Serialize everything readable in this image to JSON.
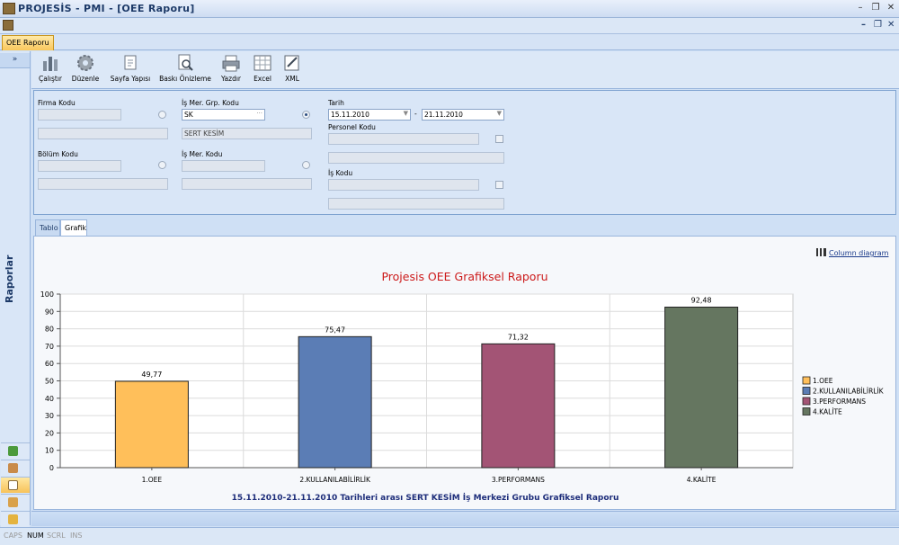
{
  "window": {
    "title": "PROJESİS - PMI - [OEE Raporu]"
  },
  "doc_tab": {
    "label": "OEE Raporu"
  },
  "left_panel": {
    "collapse": "»",
    "label": "Raporlar"
  },
  "toolbar": {
    "run": "Çalıştır",
    "edit": "Düzenle",
    "page_setup": "Sayfa Yapısı",
    "print_preview": "Baskı Önizleme",
    "print": "Yazdır",
    "excel": "Excel",
    "xml": "XML"
  },
  "filters": {
    "firma_kodu": {
      "label": "Firma Kodu",
      "value": "",
      "desc": ""
    },
    "bolum_kodu": {
      "label": "Bölüm Kodu",
      "value": "",
      "desc": ""
    },
    "is_mer_grp_kodu": {
      "label": "İş Mer. Grp. Kodu",
      "value": "SK",
      "desc": "SERT KESİM"
    },
    "is_mer_kodu": {
      "label": "İş Mer. Kodu",
      "value": "",
      "desc": ""
    },
    "tarih": {
      "label": "Tarih",
      "from": "15.11.2010",
      "to": "21.11.2010",
      "sep": "-"
    },
    "personel_kodu": {
      "label": "Personel Kodu",
      "value": "",
      "desc": ""
    },
    "is_kodu": {
      "label": "İş Kodu",
      "value": "",
      "desc": ""
    }
  },
  "tabs": [
    {
      "label": "Tablo"
    },
    {
      "label": "Grafik"
    }
  ],
  "column_diagram_link": "Column diagram",
  "status": {
    "caps": "CAPS",
    "num": "NUM",
    "scrl": "SCRL",
    "ins": "INS"
  },
  "chart_data": {
    "type": "bar",
    "title": "Projesis OEE Grafiksel Raporu",
    "subtitle": "15.11.2010-21.11.2010 Tarihleri arası SERT KESİM İş Merkezi Grubu  Grafiksel Raporu",
    "categories": [
      "1.OEE",
      "2.KULLANILABİLİRLİK",
      "3.PERFORMANS",
      "4.KALİTE"
    ],
    "values": [
      49.77,
      75.47,
      71.32,
      92.48
    ],
    "value_labels": [
      "49,77",
      "75,47",
      "71,32",
      "92,48"
    ],
    "legend": [
      "1.OEE",
      "2.KULLANILABİLİRLİK",
      "3.PERFORMANS",
      "4.KALİTE"
    ],
    "colors": [
      "#ffbf5a",
      "#5b7db5",
      "#a35475",
      "#657660"
    ],
    "ylim": [
      0,
      100
    ],
    "yticks": [
      0,
      10,
      20,
      30,
      40,
      50,
      60,
      70,
      80,
      90,
      100
    ],
    "grid": true,
    "legend_position": "right",
    "title_color": "#cc1a1a",
    "subtitle_color": "#1d2d7a"
  }
}
